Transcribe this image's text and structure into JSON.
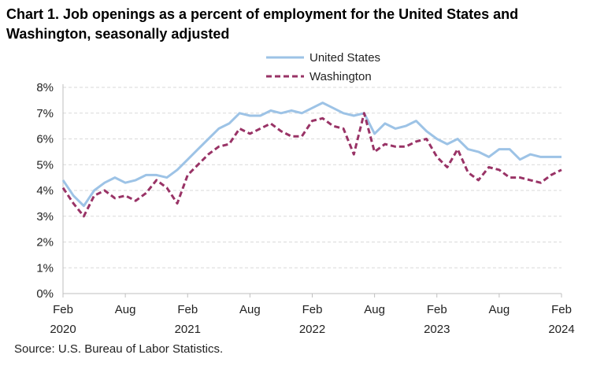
{
  "chart_data": {
    "type": "line",
    "title": "Chart 1. Job openings as a percent of employment for the United States and Washington, seasonally adjusted",
    "source": "Source: U.S. Bureau of Labor Statistics.",
    "xlabel": "",
    "ylabel": "",
    "ylim": [
      0,
      8
    ],
    "y_ticks": [
      "0%",
      "1%",
      "2%",
      "3%",
      "4%",
      "5%",
      "6%",
      "7%",
      "8%"
    ],
    "x_ticks": [
      {
        "month": "Feb",
        "year": "2020"
      },
      {
        "month": "Aug",
        "year": ""
      },
      {
        "month": "Feb",
        "year": "2021"
      },
      {
        "month": "Aug",
        "year": ""
      },
      {
        "month": "Feb",
        "year": "2022"
      },
      {
        "month": "Aug",
        "year": ""
      },
      {
        "month": "Feb",
        "year": "2023"
      },
      {
        "month": "Aug",
        "year": ""
      },
      {
        "month": "Feb",
        "year": "2024"
      }
    ],
    "grid": "horizontal dashed",
    "legend": "top-center",
    "series": [
      {
        "name": "United States",
        "color": "#9dc3e6",
        "style": "solid",
        "values": [
          4.4,
          3.8,
          3.4,
          4.0,
          4.3,
          4.5,
          4.3,
          4.4,
          4.6,
          4.6,
          4.5,
          4.8,
          5.2,
          5.6,
          6.0,
          6.4,
          6.6,
          7.0,
          6.9,
          6.9,
          7.1,
          7.0,
          7.1,
          7.0,
          7.2,
          7.4,
          7.2,
          7.0,
          6.9,
          7.0,
          6.2,
          6.6,
          6.4,
          6.5,
          6.7,
          6.3,
          6.0,
          5.8,
          6.0,
          5.6,
          5.5,
          5.3,
          5.6,
          5.6,
          5.2,
          5.4,
          5.3,
          5.3,
          5.3
        ]
      },
      {
        "name": "Washington",
        "color": "#993366",
        "style": "dashed",
        "values": [
          4.1,
          3.5,
          3.0,
          3.8,
          4.0,
          3.7,
          3.8,
          3.6,
          3.9,
          4.4,
          4.1,
          3.5,
          4.6,
          5.0,
          5.4,
          5.7,
          5.8,
          6.4,
          6.2,
          6.4,
          6.6,
          6.3,
          6.1,
          6.1,
          6.7,
          6.8,
          6.5,
          6.4,
          5.4,
          7.0,
          5.5,
          5.8,
          5.7,
          5.7,
          5.9,
          6.0,
          5.3,
          4.9,
          5.6,
          4.7,
          4.4,
          4.9,
          4.8,
          4.5,
          4.5,
          4.4,
          4.3,
          4.6,
          4.8
        ]
      }
    ]
  }
}
